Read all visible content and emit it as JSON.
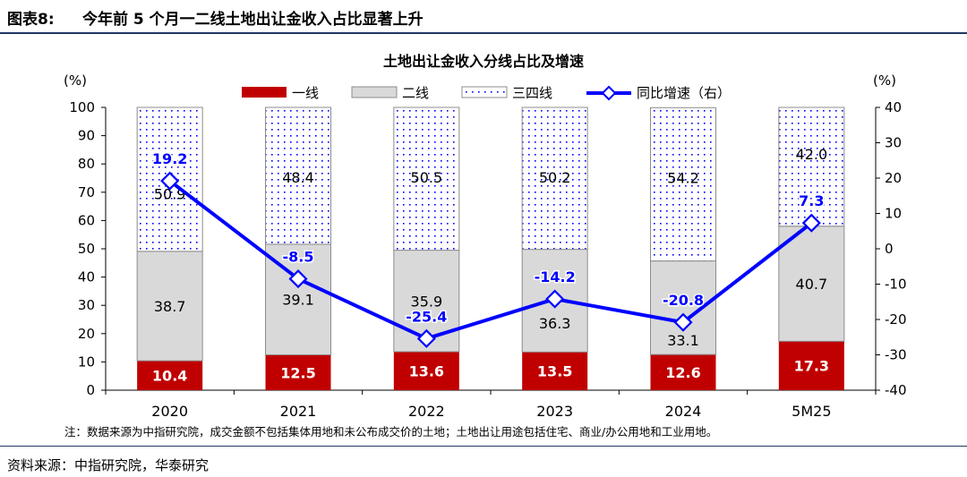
{
  "figure": {
    "label": "图表8:",
    "title": "今年前 5 个月一二线土地出让金收入占比显著上升",
    "note": "注：数据来源为中指研究院，成交金额不包括集体用地和未公布成交价的土地；土地出让用途包括住宅、商业/办公用地和工业用地。",
    "source": "资料来源：中指研究院，华泰研究"
  },
  "chart_data": {
    "type": "bar",
    "stacked": true,
    "title": "土地出让金收入分线占比及增速",
    "ylabel": "(%)",
    "y2label": "(%)",
    "categories": [
      "2020",
      "2021",
      "2022",
      "2023",
      "2024",
      "5M25"
    ],
    "ylim": [
      0,
      100
    ],
    "yticks": [
      0,
      10,
      20,
      30,
      40,
      50,
      60,
      70,
      80,
      90,
      100
    ],
    "y2lim": [
      -40,
      40
    ],
    "y2ticks": [
      -40,
      -30,
      -20,
      -10,
      0,
      10,
      20,
      30,
      40
    ],
    "legend_position": "top",
    "series": [
      {
        "name": "一线",
        "kind": "bar",
        "axis": "left",
        "color": "#c00000",
        "values": [
          10.4,
          12.5,
          13.6,
          13.5,
          12.6,
          17.3
        ]
      },
      {
        "name": "二线",
        "kind": "bar",
        "axis": "left",
        "color": "#d9d9d9",
        "values": [
          38.7,
          39.1,
          35.9,
          36.3,
          33.1,
          40.7
        ]
      },
      {
        "name": "三四线",
        "kind": "bar",
        "axis": "left",
        "color": "#0000ff",
        "pattern": "dots",
        "values": [
          50.9,
          48.4,
          50.5,
          50.2,
          54.2,
          42.0
        ]
      },
      {
        "name": "同比增速（右）",
        "kind": "line",
        "axis": "right",
        "color": "#0000ff",
        "marker": "diamond",
        "values": [
          19.2,
          -8.5,
          -25.4,
          -14.2,
          -20.8,
          7.3
        ]
      }
    ]
  }
}
